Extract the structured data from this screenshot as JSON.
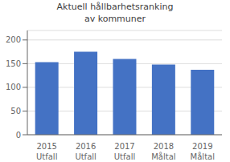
{
  "chart_data": {
    "type": "bar",
    "title": "Aktuell hållbarhetsranking\nav kommuner",
    "categories": [
      "2015",
      "2016",
      "2017",
      "2018",
      "2019"
    ],
    "annotations": [
      "Utfall",
      "Utfall",
      "Utfall",
      "Måltal",
      "Måltal"
    ],
    "values": [
      153,
      175,
      160,
      148,
      137
    ],
    "color": "#4472C4",
    "ylim": [
      0,
      220
    ],
    "yticks": [
      0,
      50,
      100,
      150,
      200
    ],
    "grid": true
  }
}
